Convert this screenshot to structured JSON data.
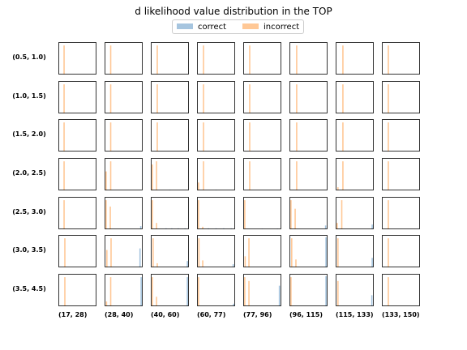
{
  "title": "d likelihood value distribution in the TOP",
  "legend": {
    "items": [
      {
        "label": "correct",
        "color": "#a6c5df"
      },
      {
        "label": "incorrect",
        "color": "#ffc896"
      }
    ]
  },
  "chart_data": {
    "type": "bar",
    "subtype": "small-multiple histograms",
    "title": "d likelihood value distribution in the TOP",
    "row_labels": [
      "(0.5, 1.0)",
      "(1.0, 1.5)",
      "(1.5, 2.0)",
      "(2.0, 2.5)",
      "(2.5, 3.0)",
      "(3.0, 3.5)",
      "(3.5, 4.5)"
    ],
    "col_labels": [
      "(17, 28)",
      "(28, 40)",
      "(40, 60)",
      "(60, 77)",
      "(77, 96)",
      "(96, 115)",
      "(115, 133)",
      "(133, 150)"
    ],
    "x_range": [
      0,
      1
    ],
    "y_range": [
      0,
      1
    ],
    "series_colors": {
      "correct": "#a6c5df",
      "incorrect": "#ffc896"
    },
    "panels": [
      [
        {
          "incorrect": [
            [
              0.15,
              0.92
            ]
          ],
          "correct": []
        },
        {
          "incorrect": [
            [
              0.16,
              0.92
            ]
          ],
          "correct": []
        },
        {
          "incorrect": [
            [
              0.17,
              0.92
            ]
          ],
          "correct": []
        },
        {
          "incorrect": [
            [
              0.17,
              0.92
            ]
          ],
          "correct": []
        },
        {
          "incorrect": [
            [
              0.17,
              0.92
            ]
          ],
          "correct": []
        },
        {
          "incorrect": [
            [
              0.19,
              0.92
            ]
          ],
          "correct": []
        },
        {
          "incorrect": [
            [
              0.19,
              0.92
            ]
          ],
          "correct": []
        },
        {
          "incorrect": [
            [
              0.17,
              0.92
            ]
          ],
          "correct": []
        }
      ],
      [
        {
          "incorrect": [
            [
              0.15,
              0.92
            ]
          ],
          "correct": []
        },
        {
          "incorrect": [
            [
              0.16,
              0.92
            ]
          ],
          "correct": []
        },
        {
          "incorrect": [
            [
              0.17,
              0.92
            ]
          ],
          "correct": []
        },
        {
          "incorrect": [
            [
              0.17,
              0.92
            ]
          ],
          "correct": []
        },
        {
          "incorrect": [
            [
              0.17,
              0.92
            ]
          ],
          "correct": []
        },
        {
          "incorrect": [
            [
              0.19,
              0.92
            ]
          ],
          "correct": []
        },
        {
          "incorrect": [
            [
              0.19,
              0.92
            ]
          ],
          "correct": []
        },
        {
          "incorrect": [
            [
              0.17,
              0.92
            ]
          ],
          "correct": []
        }
      ],
      [
        {
          "incorrect": [
            [
              0.15,
              0.92
            ]
          ],
          "correct": []
        },
        {
          "incorrect": [
            [
              0.16,
              0.92
            ]
          ],
          "correct": []
        },
        {
          "incorrect": [
            [
              0.17,
              0.92
            ]
          ],
          "correct": []
        },
        {
          "incorrect": [
            [
              0.17,
              0.92
            ]
          ],
          "correct": []
        },
        {
          "incorrect": [
            [
              0.17,
              0.92
            ]
          ],
          "correct": []
        },
        {
          "incorrect": [
            [
              0.19,
              0.92
            ]
          ],
          "correct": []
        },
        {
          "incorrect": [
            [
              0.19,
              0.92
            ]
          ],
          "correct": []
        },
        {
          "incorrect": [
            [
              0.17,
              0.92
            ]
          ],
          "correct": []
        }
      ],
      [
        {
          "incorrect": [
            [
              0.15,
              0.92
            ]
          ],
          "correct": []
        },
        {
          "incorrect": [
            [
              0.04,
              0.6
            ],
            [
              0.16,
              0.92
            ]
          ],
          "correct": []
        },
        {
          "incorrect": [
            [
              0.04,
              0.82
            ],
            [
              0.15,
              0.92
            ]
          ],
          "correct": [
            [
              0.5,
              0.02
            ]
          ]
        },
        {
          "incorrect": [
            [
              0.04,
              0.25
            ],
            [
              0.17,
              0.92
            ]
          ],
          "correct": [
            [
              0.5,
              0.02
            ]
          ]
        },
        {
          "incorrect": [
            [
              0.17,
              0.92
            ]
          ],
          "correct": []
        },
        {
          "incorrect": [
            [
              0.19,
              0.92
            ]
          ],
          "correct": []
        },
        {
          "incorrect": [
            [
              0.06,
              0.1
            ],
            [
              0.19,
              0.92
            ]
          ],
          "correct": []
        },
        {
          "incorrect": [
            [
              0.17,
              0.92
            ]
          ],
          "correct": []
        }
      ],
      [
        {
          "incorrect": [
            [
              0.15,
              0.92
            ]
          ],
          "correct": []
        },
        {
          "incorrect": [
            [
              0.04,
              0.92
            ],
            [
              0.15,
              0.72
            ]
          ],
          "correct": [
            [
              0.95,
              0.1
            ]
          ]
        },
        {
          "incorrect": [
            [
              0.04,
              0.92
            ],
            [
              0.15,
              0.2
            ]
          ],
          "correct": [
            [
              0.4,
              0.03
            ],
            [
              0.55,
              0.03
            ],
            [
              0.72,
              0.03
            ],
            [
              0.9,
              0.03
            ]
          ]
        },
        {
          "incorrect": [
            [
              0.04,
              0.92
            ],
            [
              0.15,
              0.08
            ]
          ],
          "correct": [
            [
              0.3,
              0.03
            ],
            [
              0.5,
              0.03
            ],
            [
              0.7,
              0.03
            ],
            [
              0.9,
              0.03
            ]
          ]
        },
        {
          "incorrect": [
            [
              0.04,
              0.92
            ]
          ],
          "correct": [
            [
              0.5,
              0.02
            ],
            [
              0.9,
              0.02
            ]
          ]
        },
        {
          "incorrect": [
            [
              0.04,
              0.92
            ],
            [
              0.15,
              0.65
            ]
          ],
          "correct": [
            [
              0.95,
              0.12
            ]
          ]
        },
        {
          "incorrect": [
            [
              0.04,
              0.2
            ],
            [
              0.16,
              0.92
            ]
          ],
          "correct": [
            [
              0.96,
              0.15
            ]
          ]
        },
        {
          "incorrect": [
            [
              0.17,
              0.92
            ]
          ],
          "correct": []
        }
      ],
      [
        {
          "incorrect": [
            [
              0.17,
              0.92
            ]
          ],
          "correct": []
        },
        {
          "incorrect": [
            [
              0.06,
              0.55
            ],
            [
              0.17,
              0.92
            ]
          ],
          "correct": [
            [
              0.93,
              0.6
            ]
          ]
        },
        {
          "incorrect": [
            [
              0.06,
              0.92
            ],
            [
              0.17,
              0.13
            ]
          ],
          "correct": [
            [
              0.96,
              0.2
            ]
          ]
        },
        {
          "incorrect": [
            [
              0.05,
              0.92
            ],
            [
              0.15,
              0.22
            ]
          ],
          "correct": [
            [
              0.95,
              0.1
            ]
          ]
        },
        {
          "incorrect": [
            [
              0.05,
              0.35
            ],
            [
              0.15,
              0.92
            ]
          ],
          "correct": []
        },
        {
          "incorrect": [
            [
              0.06,
              0.92
            ],
            [
              0.17,
              0.25
            ]
          ],
          "correct": [
            [
              0.96,
              0.95
            ]
          ]
        },
        {
          "incorrect": [
            [
              0.06,
              0.92
            ]
          ],
          "correct": [
            [
              0.96,
              0.3
            ]
          ]
        },
        {
          "incorrect": [
            [
              0.17,
              0.92
            ]
          ],
          "correct": []
        }
      ],
      [
        {
          "incorrect": [
            [
              0.17,
              0.92
            ]
          ],
          "correct": []
        },
        {
          "incorrect": [
            [
              0.05,
              0.15
            ],
            [
              0.16,
              0.92
            ]
          ],
          "correct": [
            [
              0.96,
              0.92
            ]
          ]
        },
        {
          "incorrect": [
            [
              0.04,
              0.92
            ],
            [
              0.15,
              0.3
            ]
          ],
          "correct": [
            [
              0.96,
              0.92
            ]
          ]
        },
        {
          "incorrect": [
            [
              0.04,
              0.92
            ]
          ],
          "correct": [
            [
              0.96,
              0.08
            ]
          ]
        },
        {
          "incorrect": [
            [
              0.04,
              0.92
            ],
            [
              0.15,
              0.8
            ]
          ],
          "correct": [
            [
              0.95,
              0.65
            ]
          ]
        },
        {
          "incorrect": [
            [
              0.04,
              0.92
            ]
          ],
          "correct": [
            [
              0.96,
              0.95
            ]
          ]
        },
        {
          "incorrect": [
            [
              0.06,
              0.8
            ]
          ],
          "correct": [
            [
              0.95,
              0.35
            ]
          ]
        },
        {
          "incorrect": [
            [
              0.17,
              0.92
            ]
          ],
          "correct": []
        }
      ]
    ]
  }
}
